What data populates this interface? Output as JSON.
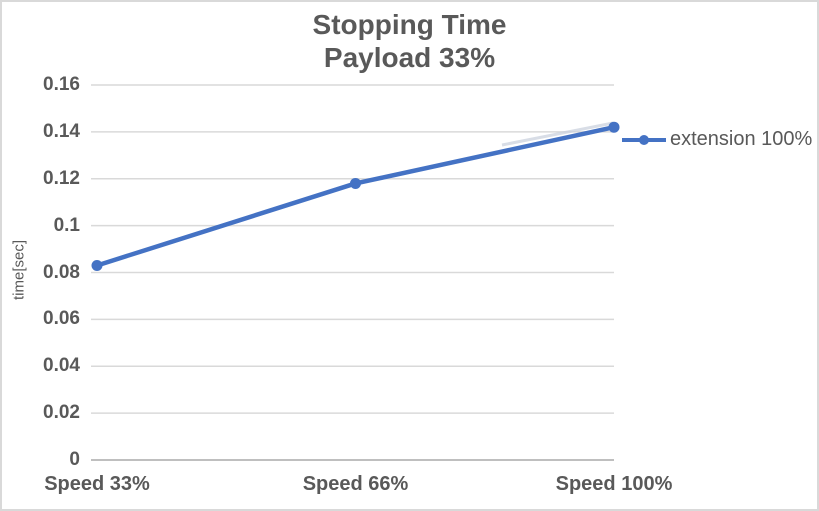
{
  "chart_data": {
    "type": "line",
    "title": "Stopping Time",
    "subtitle": "Payload 33%",
    "ylabel": "time[sec]",
    "categories": [
      "Speed 33%",
      "Speed 66%",
      "Speed 100%"
    ],
    "series": [
      {
        "name": "extension 100%",
        "color": "#4472C4",
        "marker": "circle",
        "values": [
          0.083,
          0.118,
          0.142
        ]
      }
    ],
    "ylim": [
      0,
      0.16
    ],
    "ytick_step": 0.02,
    "yticks": [
      {
        "value": 0,
        "label": "0"
      },
      {
        "value": 0.02,
        "label": "0.02"
      },
      {
        "value": 0.04,
        "label": "0.04"
      },
      {
        "value": 0.06,
        "label": "0.06"
      },
      {
        "value": 0.08,
        "label": "0.08"
      },
      {
        "value": 0.1,
        "label": "0.1"
      },
      {
        "value": 0.12,
        "label": "0.12"
      },
      {
        "value": 0.14,
        "label": "0.14"
      },
      {
        "value": 0.16,
        "label": "0.16"
      }
    ],
    "grid": true,
    "legend_position": "right-middle"
  },
  "styles": {
    "series_color": "#4472C4",
    "gridline_color": "#D9D9D9",
    "axis_line_color": "#BFBFBF",
    "ghost_line_color": "#CBD2DE",
    "text_color": "#595959",
    "border_color": "#D9D9D9",
    "background": "#FFFFFF"
  }
}
